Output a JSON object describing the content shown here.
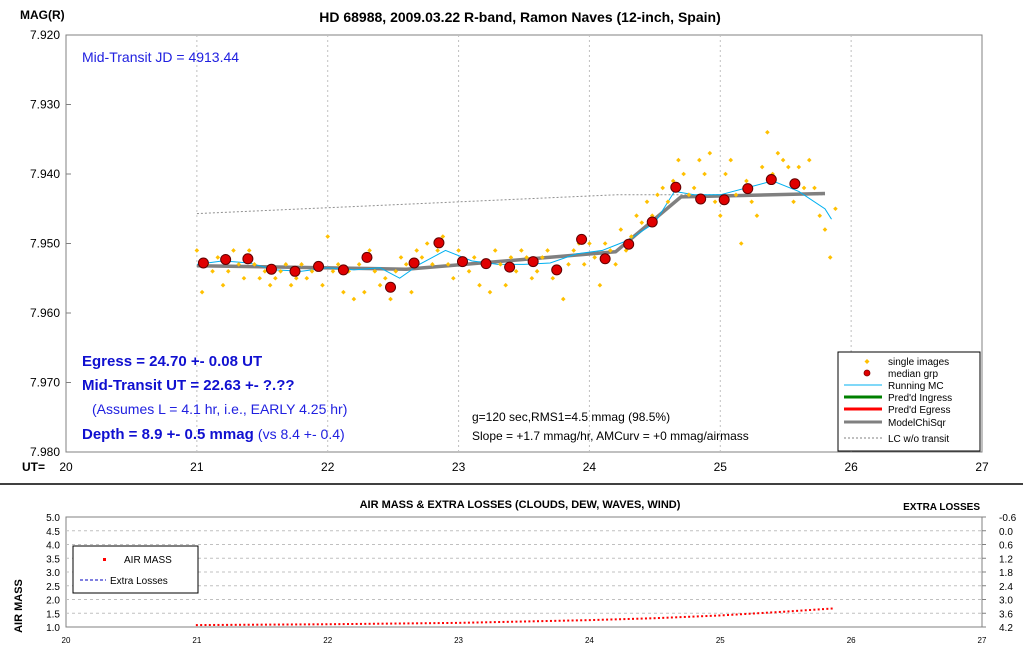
{
  "chart_data": [
    {
      "type": "scatter",
      "title": "HD 68988, 2009.03.22 R-band, Ramon Naves (12-inch, Spain)",
      "ylabel": "MAG(R)",
      "xlabel": "UT=",
      "xlim": [
        20,
        27
      ],
      "ylim": [
        7.92,
        7.98
      ],
      "y_inverted": true,
      "x_ticks": [
        "20",
        "21",
        "22",
        "23",
        "24",
        "25",
        "26",
        "27"
      ],
      "y_ticks": [
        "7.920",
        "7.930",
        "7.940",
        "7.950",
        "7.960",
        "7.970",
        "7.980"
      ],
      "annotations": {
        "jd": "Mid-Transit JD = 4913.44",
        "egress": "Egress = 24.70 +- 0.08 UT",
        "midtransit": "Mid-Transit UT = 22.63 +- ?.??",
        "assumes": "(Assumes L = 4.1 hr, i.e., EARLY 4.25 hr)",
        "depth_main": "Depth = 8.9 +- 0.5 mmag",
        "depth_vs": "(vs 8.4 +- 0.4)",
        "stats1": "g=120 sec,RMS1=4.5 mmag (98.5%)",
        "stats2": "Slope = +1.7 mmag/hr, AMCurv = +0 mmag/airmass"
      },
      "legend": {
        "placement": "bottom-right",
        "entries": [
          "single images",
          "median grp",
          "Running MC",
          "Pred'd Ingress",
          "Pred'd Egress",
          "ModelChiSqr",
          "LC w/o transit"
        ]
      },
      "series": [
        {
          "name": "single images",
          "color": "#ffc000",
          "x": [
            21.0,
            21.04,
            21.08,
            21.12,
            21.16,
            21.2,
            21.24,
            21.28,
            21.32,
            21.36,
            21.4,
            21.44,
            21.48,
            21.52,
            21.56,
            21.6,
            21.64,
            21.68,
            21.72,
            21.76,
            21.8,
            21.84,
            21.88,
            21.92,
            21.96,
            22.0,
            22.04,
            22.08,
            22.12,
            22.16,
            22.2,
            22.24,
            22.28,
            22.32,
            22.36,
            22.4,
            22.44,
            22.48,
            22.52,
            22.56,
            22.6,
            22.64,
            22.68,
            22.72,
            22.76,
            22.8,
            22.84,
            22.88,
            22.92,
            22.96,
            23.0,
            23.04,
            23.08,
            23.12,
            23.16,
            23.2,
            23.24,
            23.28,
            23.32,
            23.36,
            23.4,
            23.44,
            23.48,
            23.52,
            23.56,
            23.6,
            23.64,
            23.68,
            23.72,
            23.76,
            23.8,
            23.84,
            23.88,
            23.92,
            23.96,
            24.0,
            24.04,
            24.08,
            24.12,
            24.16,
            24.2,
            24.24,
            24.28,
            24.32,
            24.36,
            24.4,
            24.44,
            24.48,
            24.52,
            24.56,
            24.6,
            24.64,
            24.68,
            24.72,
            24.76,
            24.8,
            24.84,
            24.88,
            24.92,
            24.96,
            25.0,
            25.04,
            25.08,
            25.12,
            25.16,
            25.2,
            25.24,
            25.28,
            25.32,
            25.36,
            25.4,
            25.44,
            25.48,
            25.52,
            25.56,
            25.6,
            25.64,
            25.68,
            25.72,
            25.76,
            25.8,
            25.84,
            25.88
          ],
          "y": [
            7.951,
            7.957,
            7.953,
            7.954,
            7.952,
            7.956,
            7.954,
            7.951,
            7.953,
            7.955,
            7.951,
            7.953,
            7.955,
            7.954,
            7.956,
            7.955,
            7.954,
            7.953,
            7.956,
            7.955,
            7.953,
            7.955,
            7.954,
            7.953,
            7.956,
            7.949,
            7.954,
            7.953,
            7.957,
            7.954,
            7.958,
            7.953,
            7.957,
            7.951,
            7.954,
            7.956,
            7.955,
            7.958,
            7.954,
            7.952,
            7.953,
            7.957,
            7.951,
            7.952,
            7.95,
            7.953,
            7.951,
            7.949,
            7.953,
            7.955,
            7.951,
            7.953,
            7.954,
            7.952,
            7.956,
            7.953,
            7.957,
            7.951,
            7.953,
            7.956,
            7.952,
            7.954,
            7.951,
            7.952,
            7.955,
            7.954,
            7.952,
            7.951,
            7.955,
            7.954,
            7.958,
            7.953,
            7.951,
            7.95,
            7.953,
            7.95,
            7.952,
            7.956,
            7.95,
            7.951,
            7.953,
            7.948,
            7.951,
            7.949,
            7.946,
            7.947,
            7.944,
            7.946,
            7.943,
            7.942,
            7.944,
            7.941,
            7.938,
            7.94,
            7.943,
            7.942,
            7.938,
            7.94,
            7.937,
            7.944,
            7.946,
            7.94,
            7.938,
            7.943,
            7.95,
            7.941,
            7.944,
            7.946,
            7.939,
            7.934,
            7.94,
            7.937,
            7.938,
            7.939,
            7.944,
            7.939,
            7.942,
            7.938,
            7.942,
            7.946,
            7.948,
            7.952,
            7.945
          ]
        },
        {
          "name": "median grp",
          "color": "#e00000",
          "x": [
            21.05,
            21.22,
            21.39,
            21.57,
            21.75,
            21.93,
            22.12,
            22.3,
            22.48,
            22.66,
            22.85,
            23.03,
            23.21,
            23.39,
            23.57,
            23.75,
            23.94,
            24.12,
            24.3,
            24.48,
            24.66,
            24.85,
            25.03,
            25.21,
            25.39,
            25.57
          ],
          "y": [
            7.9528,
            7.9523,
            7.9522,
            7.9537,
            7.954,
            7.9533,
            7.9538,
            7.952,
            7.9563,
            7.9528,
            7.9499,
            7.9526,
            7.9529,
            7.9534,
            7.9526,
            7.9538,
            7.9494,
            7.9522,
            7.9501,
            7.9469,
            7.9419,
            7.9436,
            7.9437,
            7.9421,
            7.9408,
            7.9414
          ]
        },
        {
          "name": "Running MC",
          "color": "#00b0f0",
          "x": [
            21.0,
            21.2,
            21.4,
            21.6,
            21.8,
            22.0,
            22.2,
            22.4,
            22.55,
            22.7,
            22.9,
            23.1,
            23.3,
            23.5,
            23.7,
            23.9,
            24.1,
            24.3,
            24.5,
            24.65,
            24.8,
            25.0,
            25.2,
            25.4,
            25.6,
            25.8,
            25.85
          ],
          "y": [
            7.953,
            7.9525,
            7.9528,
            7.9538,
            7.954,
            7.9535,
            7.9538,
            7.9535,
            7.955,
            7.953,
            7.951,
            7.9525,
            7.953,
            7.953,
            7.9528,
            7.9515,
            7.951,
            7.9495,
            7.947,
            7.9425,
            7.943,
            7.943,
            7.942,
            7.941,
            7.9425,
            7.945,
            7.9465
          ]
        },
        {
          "name": "ModelChiSqr",
          "color": "#808080",
          "x": [
            21.0,
            22.6,
            24.2,
            24.7,
            25.8
          ],
          "y": [
            7.9532,
            7.9537,
            7.9512,
            7.9433,
            7.9428
          ]
        },
        {
          "name": "LC w/o transit",
          "color": "#808080",
          "x": [
            21.0,
            24.2,
            25.8
          ],
          "y": [
            7.9457,
            7.943,
            7.943
          ]
        }
      ]
    },
    {
      "type": "scatter",
      "title": "AIR MASS & EXTRA LOSSES (CLOUDS, DEW, WAVES, WIND)",
      "right_title": "EXTRA LOSSES",
      "ylabel": "AIR MASS",
      "xlim": [
        20,
        27
      ],
      "ylim": [
        1.0,
        5.0
      ],
      "y2lim": [
        4.2,
        -0.6
      ],
      "x_ticks": [
        "20",
        "21",
        "22",
        "23",
        "24",
        "25",
        "26",
        "27"
      ],
      "y_ticks": [
        "1.0",
        "1.5",
        "2.0",
        "2.5",
        "3.0",
        "3.5",
        "4.0",
        "4.5",
        "5.0"
      ],
      "y2_ticks": [
        "-0.6",
        "0.0",
        "0.6",
        "1.2",
        "1.8",
        "2.4",
        "3.0",
        "3.6",
        "4.2"
      ],
      "legend": {
        "placement": "left",
        "entries": [
          "AIR MASS",
          "Extra Losses"
        ]
      },
      "series": [
        {
          "name": "AIR MASS",
          "color": "#ff0000",
          "x": [
            21.0,
            22.0,
            23.0,
            24.0,
            24.5,
            25.0,
            25.5,
            25.88
          ],
          "y": [
            1.07,
            1.1,
            1.15,
            1.25,
            1.32,
            1.42,
            1.56,
            1.68
          ]
        },
        {
          "name": "Extra Losses",
          "color": "#0000c0",
          "x": [],
          "y": []
        }
      ]
    }
  ]
}
